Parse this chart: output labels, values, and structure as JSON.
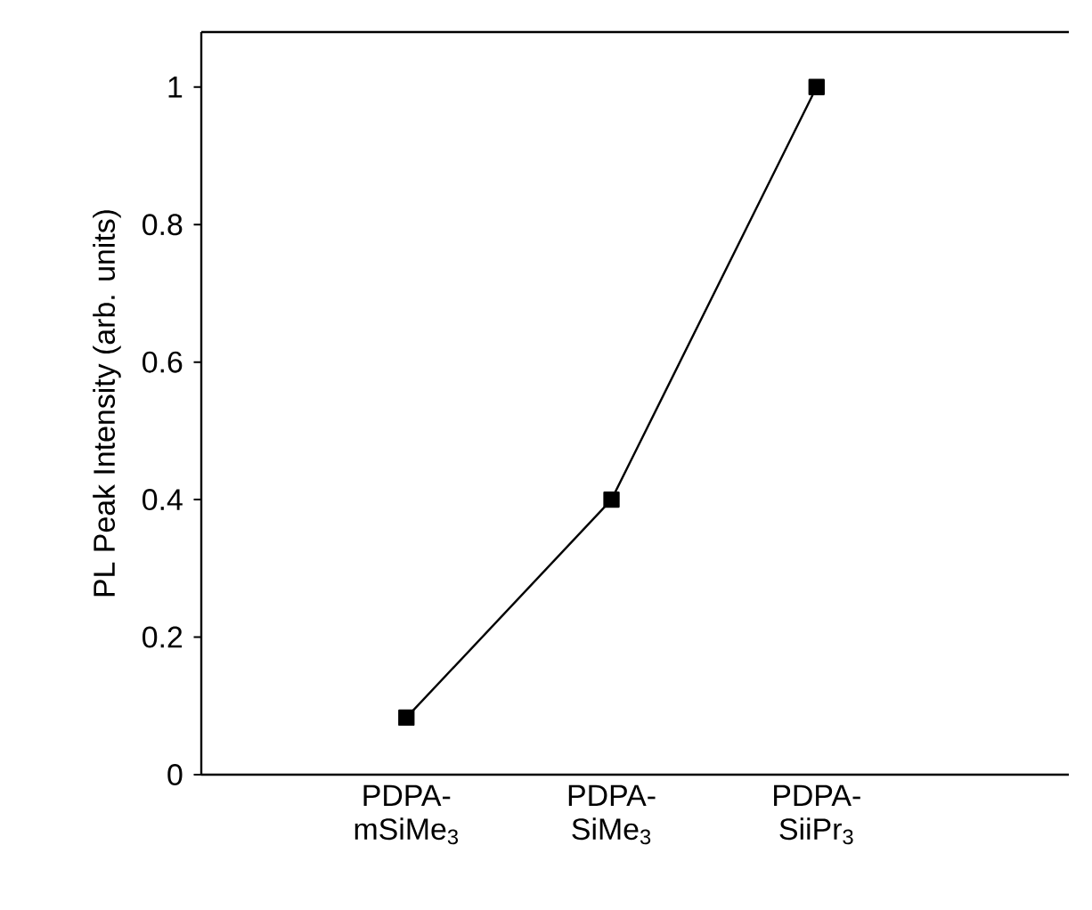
{
  "chart_data": {
    "type": "line",
    "ylabel": "PL Peak Intensity (arb. units)",
    "categories": [
      "PDPA-mSiMe$_{3}$",
      "PDPA-SiMe$_{3}$",
      "PDPA-SiiPr$_{3}$"
    ],
    "series": [
      {
        "color": "#000000",
        "values": [
          0.083,
          0.4,
          1.0
        ]
      }
    ],
    "ylim": [
      0,
      1.08
    ],
    "yticks": [
      0,
      0.2,
      0.4,
      0.6,
      0.8,
      1
    ],
    "marker": "square",
    "line_style": "solid"
  }
}
